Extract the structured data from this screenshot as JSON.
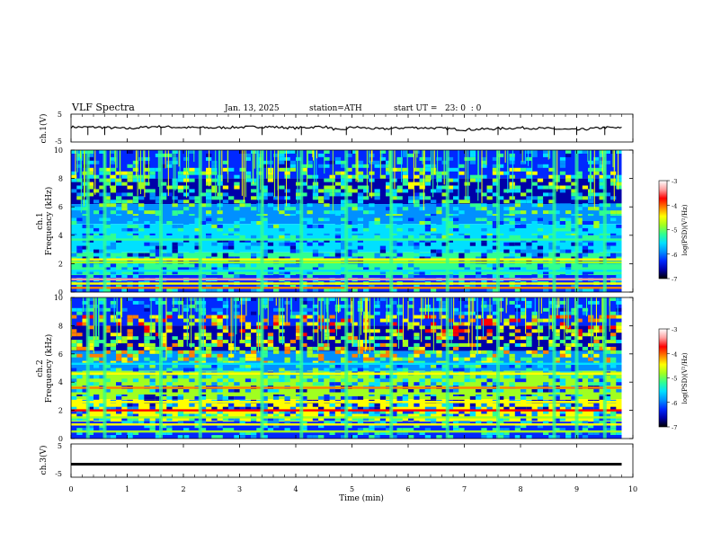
{
  "header": {
    "title": "VLF Spectra",
    "date": "Jan. 13, 2025",
    "station": "station=ATH",
    "start_ut": "start UT =   23: 0  : 0"
  },
  "colors": {
    "colormap": [
      "#000000",
      "#0000a8",
      "#0028ff",
      "#0090ff",
      "#00e0ff",
      "#30ff90",
      "#a0ff20",
      "#ffff00",
      "#ff8000",
      "#ff0000",
      "#ffa0a0",
      "#ffffff"
    ],
    "trace": "#000000",
    "axis": "#000000"
  },
  "chart_data": [
    {
      "type": "line",
      "name_label": "ch.1(V)",
      "ylabel": "ch.1(V)",
      "ylim": [
        -5,
        5
      ],
      "y_ticks": [
        "5",
        "-5"
      ],
      "x_range_min": [
        0,
        10
      ],
      "approx_level": 0.2,
      "x": [
        0.0,
        0.5,
        1.0,
        1.5,
        2.0,
        2.5,
        3.0,
        3.5,
        4.0,
        4.5,
        4.8,
        5.0,
        5.5,
        6.0,
        6.5,
        7.0,
        7.5,
        8.0,
        8.5,
        9.0,
        9.5,
        9.8
      ],
      "y": [
        0.4,
        0.3,
        -0.2,
        0.6,
        0.2,
        0.1,
        0.3,
        0.5,
        0.0,
        0.6,
        -1.0,
        0.4,
        -0.4,
        0.2,
        0.0,
        -0.6,
        -0.3,
        0.1,
        -0.2,
        -0.7,
        0.2,
        0.0
      ]
    },
    {
      "type": "heatmap",
      "name_label": "ch.1",
      "ylabel": "Frequency (kHz)",
      "ylim": [
        0,
        10
      ],
      "y_ticks": [
        "0",
        "2",
        "4",
        "6",
        "8",
        "10"
      ],
      "x_range_min": [
        0,
        9.8
      ],
      "colorbar": {
        "label": "log(PSD)(V²/Hz)",
        "ticks": [
          "-3",
          "-4",
          "-5",
          "-6",
          "-7"
        ],
        "range": [
          -7,
          -3
        ]
      },
      "features": {
        "bands_khz": [
          {
            "f": 0.3,
            "v": -4.2
          },
          {
            "f": 0.6,
            "v": -4.6
          },
          {
            "f": 0.9,
            "v": -3.3
          },
          {
            "f": 1.5,
            "v": -5.6
          },
          {
            "f": 2.1,
            "v": -4.9
          },
          {
            "f": 2.3,
            "v": -4.3
          },
          {
            "f": 3.7,
            "v": -5.2
          },
          {
            "f": 4.2,
            "v": -5.6
          },
          {
            "f": 5.3,
            "v": -5.9
          }
        ],
        "impulse_times_min": [
          0.3,
          0.6,
          1.6,
          2.3,
          3.4,
          4.1,
          4.9,
          5.7,
          6.7,
          7.6,
          8.6,
          9.0,
          9.5
        ]
      }
    },
    {
      "type": "heatmap",
      "name_label": "ch.2",
      "ylabel": "Frequency (kHz)",
      "ylim": [
        0,
        10
      ],
      "y_ticks": [
        "0",
        "2",
        "4",
        "6",
        "8",
        "10"
      ],
      "x_range_min": [
        0,
        9.8
      ],
      "colorbar": {
        "label": "log(PSD)(V²/Hz)",
        "ticks": [
          "-3",
          "-4",
          "-5",
          "-6",
          "-7"
        ],
        "range": [
          -7,
          -3
        ]
      },
      "features": {
        "bands_khz": [
          {
            "f": 0.5,
            "v": -4.8
          },
          {
            "f": 1.0,
            "v": -4.4
          },
          {
            "f": 1.5,
            "v": -4.8
          },
          {
            "f": 2.0,
            "v": -3.6
          },
          {
            "f": 2.6,
            "v": -4.6
          },
          {
            "f": 3.2,
            "v": -4.8
          },
          {
            "f": 3.6,
            "v": -4.2
          },
          {
            "f": 4.6,
            "v": -4.6
          },
          {
            "f": 5.3,
            "v": -5.6
          }
        ],
        "impulse_times_min": [
          0.3,
          0.6,
          1.6,
          2.3,
          3.4,
          4.1,
          4.9,
          5.7,
          6.7,
          7.6,
          8.6,
          9.0,
          9.5
        ]
      }
    },
    {
      "type": "line",
      "name_label": "ch.3(V)",
      "ylabel": "ch.3(V)",
      "ylim": [
        -5,
        5
      ],
      "y_ticks": [
        "5",
        "0",
        "-5"
      ],
      "x_range_min": [
        0,
        9.8
      ],
      "x": [
        0,
        9.8
      ],
      "y": [
        -1.3,
        -1.3
      ]
    }
  ],
  "xaxis": {
    "label": "Time (min)",
    "range": [
      0,
      10
    ],
    "ticks": [
      "0",
      "1",
      "2",
      "3",
      "4",
      "5",
      "6",
      "7",
      "8",
      "9",
      "10"
    ]
  }
}
